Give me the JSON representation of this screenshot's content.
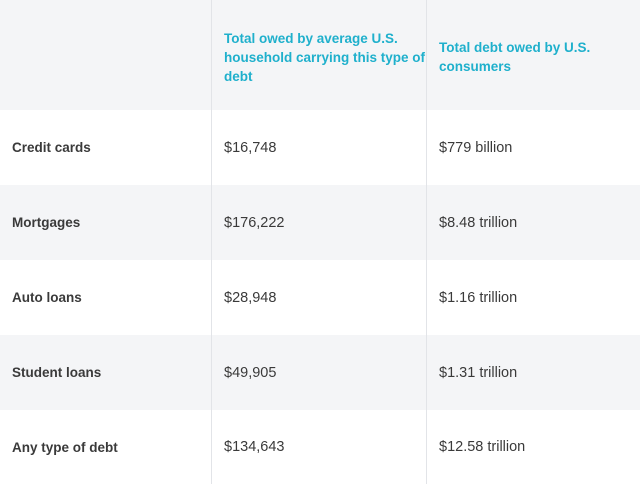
{
  "table": {
    "headers": [
      "",
      "Total owed by average U.S. household carrying this type of debt",
      "Total debt owed by U.S. consumers"
    ],
    "rows": [
      {
        "label": "Credit cards",
        "household": "$16,748",
        "total": "$779 billion"
      },
      {
        "label": "Mortgages",
        "household": "$176,222",
        "total": "$8.48 trillion"
      },
      {
        "label": "Auto loans",
        "household": "$28,948",
        "total": "$1.16 trillion"
      },
      {
        "label": "Student loans",
        "household": "$49,905",
        "total": "$1.31 trillion"
      },
      {
        "label": "Any type of debt",
        "household": "$134,643",
        "total": "$12.58 trillion"
      }
    ]
  },
  "colors": {
    "header_text": "#1fb0cc",
    "body_text": "#3a3a3a",
    "shaded_row": "#f4f5f7",
    "divider": "#e2e4e8"
  }
}
